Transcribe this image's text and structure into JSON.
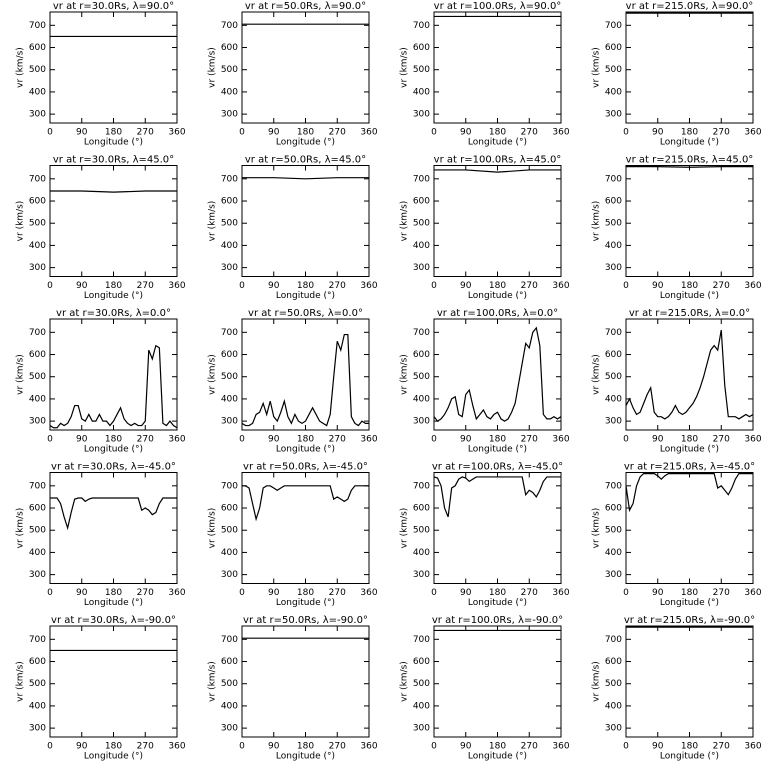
{
  "chart_data": [
    {
      "type": "line",
      "title": "vr at r=30.0Rs, λ=90.0°",
      "xlabel": "Longitude (°)",
      "ylabel": "vr (km/s)",
      "color": "#000000",
      "x": [
        0,
        90,
        180,
        270,
        360
      ],
      "values": [
        650,
        650,
        650,
        650,
        650
      ],
      "xlim": [
        0,
        360
      ],
      "ylim": [
        260,
        760
      ],
      "xticks": [
        0,
        90,
        180,
        270,
        360
      ],
      "yticks": [
        300,
        400,
        500,
        600,
        700
      ]
    },
    {
      "type": "line",
      "title": "vr at r=50.0Rs, λ=90.0°",
      "xlabel": "Longitude (°)",
      "ylabel": "vr (km/s)",
      "color": "#000000",
      "x": [
        0,
        90,
        180,
        270,
        360
      ],
      "values": [
        705,
        705,
        705,
        705,
        705
      ],
      "xlim": [
        0,
        360
      ],
      "ylim": [
        260,
        760
      ],
      "xticks": [
        0,
        90,
        180,
        270,
        360
      ],
      "yticks": [
        300,
        400,
        500,
        600,
        700
      ]
    },
    {
      "type": "line",
      "title": "vr at r=100.0Rs, λ=90.0°",
      "xlabel": "Longitude (°)",
      "ylabel": "vr (km/s)",
      "color": "#000000",
      "x": [
        0,
        90,
        180,
        270,
        360
      ],
      "values": [
        740,
        740,
        740,
        740,
        740
      ],
      "xlim": [
        0,
        360
      ],
      "ylim": [
        260,
        760
      ],
      "xticks": [
        0,
        90,
        180,
        270,
        360
      ],
      "yticks": [
        300,
        400,
        500,
        600,
        700
      ]
    },
    {
      "type": "line",
      "title": "vr at r=215.0Rs, λ=90.0°",
      "xlabel": "Longitude (°)",
      "ylabel": "vr (km/s)",
      "color": "#000000",
      "x": [
        0,
        90,
        180,
        270,
        360
      ],
      "values": [
        755,
        755,
        755,
        755,
        755
      ],
      "xlim": [
        0,
        360
      ],
      "ylim": [
        260,
        760
      ],
      "xticks": [
        0,
        90,
        180,
        270,
        360
      ],
      "yticks": [
        300,
        400,
        500,
        600,
        700
      ]
    },
    {
      "type": "line",
      "title": "vr at r=30.0Rs, λ=45.0°",
      "xlabel": "Longitude (°)",
      "ylabel": "vr (km/s)",
      "color": "#000000",
      "x": [
        0,
        90,
        180,
        270,
        360
      ],
      "values": [
        645,
        645,
        640,
        645,
        645
      ],
      "xlim": [
        0,
        360
      ],
      "ylim": [
        260,
        760
      ],
      "xticks": [
        0,
        90,
        180,
        270,
        360
      ],
      "yticks": [
        300,
        400,
        500,
        600,
        700
      ]
    },
    {
      "type": "line",
      "title": "vr at r=50.0Rs, λ=45.0°",
      "xlabel": "Longitude (°)",
      "ylabel": "vr (km/s)",
      "color": "#000000",
      "x": [
        0,
        90,
        180,
        270,
        360
      ],
      "values": [
        705,
        705,
        700,
        705,
        705
      ],
      "xlim": [
        0,
        360
      ],
      "ylim": [
        260,
        760
      ],
      "xticks": [
        0,
        90,
        180,
        270,
        360
      ],
      "yticks": [
        300,
        400,
        500,
        600,
        700
      ]
    },
    {
      "type": "line",
      "title": "vr at r=100.0Rs, λ=45.0°",
      "xlabel": "Longitude (°)",
      "ylabel": "vr (km/s)",
      "color": "#000000",
      "x": [
        0,
        90,
        180,
        270,
        360
      ],
      "values": [
        740,
        740,
        730,
        740,
        740
      ],
      "xlim": [
        0,
        360
      ],
      "ylim": [
        260,
        760
      ],
      "xticks": [
        0,
        90,
        180,
        270,
        360
      ],
      "yticks": [
        300,
        400,
        500,
        600,
        700
      ]
    },
    {
      "type": "line",
      "title": "vr at r=215.0Rs, λ=45.0°",
      "xlabel": "Longitude (°)",
      "ylabel": "vr (km/s)",
      "color": "#000000",
      "x": [
        0,
        90,
        180,
        270,
        360
      ],
      "values": [
        755,
        755,
        752,
        755,
        755
      ],
      "xlim": [
        0,
        360
      ],
      "ylim": [
        260,
        760
      ],
      "xticks": [
        0,
        90,
        180,
        270,
        360
      ],
      "yticks": [
        300,
        400,
        500,
        600,
        700
      ]
    },
    {
      "type": "line",
      "title": "vr at r=30.0Rs, λ=0.0°",
      "xlabel": "Longitude (°)",
      "ylabel": "vr (km/s)",
      "color": "#000000",
      "x": [
        0,
        10,
        20,
        30,
        40,
        50,
        60,
        70,
        80,
        90,
        100,
        110,
        120,
        130,
        140,
        150,
        160,
        170,
        180,
        190,
        200,
        210,
        220,
        230,
        240,
        250,
        260,
        270,
        280,
        290,
        300,
        310,
        320,
        330,
        340,
        350,
        360
      ],
      "values": [
        280,
        270,
        270,
        290,
        280,
        290,
        320,
        370,
        370,
        310,
        300,
        330,
        300,
        300,
        330,
        300,
        300,
        280,
        300,
        330,
        360,
        310,
        290,
        280,
        290,
        280,
        280,
        300,
        620,
        580,
        640,
        630,
        290,
        280,
        300,
        280,
        270
      ],
      "xlim": [
        0,
        360
      ],
      "ylim": [
        260,
        760
      ],
      "xticks": [
        0,
        90,
        180,
        270,
        360
      ],
      "yticks": [
        300,
        400,
        500,
        600,
        700
      ]
    },
    {
      "type": "line",
      "title": "vr at r=50.0Rs, λ=0.0°",
      "xlabel": "Longitude (°)",
      "ylabel": "vr (km/s)",
      "color": "#000000",
      "x": [
        0,
        10,
        20,
        30,
        40,
        50,
        60,
        70,
        80,
        90,
        100,
        110,
        120,
        130,
        140,
        150,
        160,
        170,
        180,
        190,
        200,
        210,
        220,
        230,
        240,
        250,
        260,
        270,
        280,
        290,
        300,
        310,
        320,
        330,
        340,
        350,
        360
      ],
      "values": [
        290,
        280,
        280,
        290,
        330,
        340,
        380,
        330,
        390,
        320,
        300,
        340,
        390,
        320,
        290,
        330,
        300,
        290,
        300,
        330,
        360,
        330,
        300,
        290,
        280,
        330,
        500,
        660,
        620,
        690,
        690,
        320,
        290,
        280,
        300,
        290,
        290
      ],
      "xlim": [
        0,
        360
      ],
      "ylim": [
        260,
        760
      ],
      "xticks": [
        0,
        90,
        180,
        270,
        360
      ],
      "yticks": [
        300,
        400,
        500,
        600,
        700
      ]
    },
    {
      "type": "line",
      "title": "vr at r=100.0Rs, λ=0.0°",
      "xlabel": "Longitude (°)",
      "ylabel": "vr (km/s)",
      "color": "#000000",
      "x": [
        0,
        10,
        20,
        30,
        40,
        50,
        60,
        70,
        80,
        90,
        100,
        110,
        120,
        130,
        140,
        150,
        160,
        170,
        180,
        190,
        200,
        210,
        220,
        230,
        240,
        250,
        260,
        270,
        280,
        290,
        300,
        310,
        320,
        330,
        340,
        350,
        360
      ],
      "values": [
        320,
        300,
        310,
        330,
        360,
        400,
        410,
        330,
        320,
        420,
        440,
        370,
        310,
        330,
        350,
        320,
        310,
        330,
        340,
        310,
        300,
        310,
        340,
        380,
        470,
        560,
        650,
        630,
        700,
        720,
        640,
        330,
        310,
        310,
        320,
        310,
        320
      ],
      "xlim": [
        0,
        360
      ],
      "ylim": [
        260,
        760
      ],
      "xticks": [
        0,
        90,
        180,
        270,
        360
      ],
      "yticks": [
        300,
        400,
        500,
        600,
        700
      ]
    },
    {
      "type": "line",
      "title": "vr at r=215.0Rs, λ=0.0°",
      "xlabel": "Longitude (°)",
      "ylabel": "vr (km/s)",
      "color": "#000000",
      "x": [
        0,
        10,
        20,
        30,
        40,
        50,
        60,
        70,
        80,
        90,
        100,
        110,
        120,
        130,
        140,
        150,
        160,
        170,
        180,
        190,
        200,
        210,
        220,
        230,
        240,
        250,
        260,
        270,
        280,
        290,
        300,
        310,
        320,
        330,
        340,
        350,
        360
      ],
      "values": [
        370,
        400,
        360,
        330,
        340,
        380,
        420,
        450,
        340,
        320,
        320,
        310,
        320,
        340,
        370,
        340,
        330,
        340,
        360,
        380,
        410,
        450,
        500,
        560,
        620,
        640,
        620,
        710,
        460,
        320,
        320,
        320,
        310,
        320,
        330,
        320,
        330
      ],
      "xlim": [
        0,
        360
      ],
      "ylim": [
        260,
        760
      ],
      "xticks": [
        0,
        90,
        180,
        270,
        360
      ],
      "yticks": [
        300,
        400,
        500,
        600,
        700
      ]
    },
    {
      "type": "line",
      "title": "vr at r=30.0Rs, λ=-45.0°",
      "xlabel": "Longitude (°)",
      "ylabel": "vr (km/s)",
      "color": "#000000",
      "x": [
        0,
        10,
        20,
        30,
        40,
        50,
        60,
        70,
        80,
        90,
        100,
        110,
        120,
        130,
        140,
        150,
        160,
        170,
        180,
        190,
        200,
        210,
        220,
        230,
        240,
        250,
        260,
        270,
        280,
        290,
        300,
        310,
        320,
        330,
        340,
        350,
        360
      ],
      "values": [
        645,
        645,
        645,
        620,
        560,
        510,
        580,
        640,
        645,
        645,
        630,
        640,
        645,
        645,
        645,
        645,
        645,
        645,
        645,
        645,
        645,
        645,
        645,
        645,
        645,
        645,
        590,
        600,
        590,
        570,
        580,
        620,
        645,
        645,
        645,
        645,
        645
      ],
      "xlim": [
        0,
        360
      ],
      "ylim": [
        260,
        760
      ],
      "xticks": [
        0,
        90,
        180,
        270,
        360
      ],
      "yticks": [
        300,
        400,
        500,
        600,
        700
      ]
    },
    {
      "type": "line",
      "title": "vr at r=50.0Rs, λ=-45.0°",
      "xlabel": "Longitude (°)",
      "ylabel": "vr (km/s)",
      "color": "#000000",
      "x": [
        0,
        10,
        20,
        30,
        40,
        50,
        60,
        70,
        80,
        90,
        100,
        110,
        120,
        130,
        140,
        150,
        160,
        170,
        180,
        190,
        200,
        210,
        220,
        230,
        240,
        250,
        260,
        270,
        280,
        290,
        300,
        310,
        320,
        330,
        340,
        350,
        360
      ],
      "values": [
        700,
        700,
        690,
        620,
        550,
        600,
        690,
        700,
        700,
        690,
        680,
        690,
        700,
        700,
        700,
        700,
        700,
        700,
        700,
        700,
        700,
        700,
        700,
        700,
        700,
        700,
        640,
        650,
        640,
        630,
        640,
        680,
        700,
        700,
        700,
        700,
        700
      ],
      "xlim": [
        0,
        360
      ],
      "ylim": [
        260,
        760
      ],
      "xticks": [
        0,
        90,
        180,
        270,
        360
      ],
      "yticks": [
        300,
        400,
        500,
        600,
        700
      ]
    },
    {
      "type": "line",
      "title": "vr at r=100.0Rs, λ=-45.0°",
      "xlabel": "Longitude (°)",
      "ylabel": "vr (km/s)",
      "color": "#000000",
      "x": [
        0,
        10,
        20,
        30,
        40,
        50,
        60,
        70,
        80,
        90,
        100,
        110,
        120,
        130,
        140,
        150,
        160,
        170,
        180,
        190,
        200,
        210,
        220,
        230,
        240,
        250,
        260,
        270,
        280,
        290,
        300,
        310,
        320,
        330,
        340,
        350,
        360
      ],
      "values": [
        740,
        735,
        700,
        600,
        560,
        690,
        700,
        730,
        740,
        735,
        720,
        730,
        740,
        740,
        740,
        740,
        740,
        740,
        740,
        740,
        740,
        740,
        740,
        740,
        740,
        740,
        660,
        680,
        670,
        650,
        680,
        720,
        740,
        740,
        740,
        740,
        740
      ],
      "xlim": [
        0,
        360
      ],
      "ylim": [
        260,
        760
      ],
      "xticks": [
        0,
        90,
        180,
        270,
        360
      ],
      "yticks": [
        300,
        400,
        500,
        600,
        700
      ]
    },
    {
      "type": "line",
      "title": "vr at r=215.0Rs, λ=-45.0°",
      "xlabel": "Longitude (°)",
      "ylabel": "vr (km/s)",
      "color": "#000000",
      "x": [
        0,
        10,
        20,
        30,
        40,
        50,
        60,
        70,
        80,
        90,
        100,
        110,
        120,
        130,
        140,
        150,
        160,
        170,
        180,
        190,
        200,
        210,
        220,
        230,
        240,
        250,
        260,
        270,
        280,
        290,
        300,
        310,
        320,
        330,
        340,
        350,
        360
      ],
      "values": [
        700,
        590,
        620,
        700,
        740,
        755,
        755,
        755,
        755,
        745,
        730,
        745,
        755,
        755,
        755,
        755,
        755,
        755,
        755,
        755,
        755,
        755,
        755,
        755,
        755,
        755,
        690,
        700,
        680,
        660,
        690,
        730,
        755,
        755,
        755,
        755,
        755
      ],
      "xlim": [
        0,
        360
      ],
      "ylim": [
        260,
        760
      ],
      "xticks": [
        0,
        90,
        180,
        270,
        360
      ],
      "yticks": [
        300,
        400,
        500,
        600,
        700
      ]
    },
    {
      "type": "line",
      "title": "vr at r=30.0Rs, λ=-90.0°",
      "xlabel": "Longitude (°)",
      "ylabel": "vr (km/s)",
      "color": "#000000",
      "x": [
        0,
        90,
        180,
        270,
        360
      ],
      "values": [
        650,
        650,
        650,
        650,
        650
      ],
      "xlim": [
        0,
        360
      ],
      "ylim": [
        260,
        760
      ],
      "xticks": [
        0,
        90,
        180,
        270,
        360
      ],
      "yticks": [
        300,
        400,
        500,
        600,
        700
      ]
    },
    {
      "type": "line",
      "title": "vr at r=50.0Rs, λ=-90.0°",
      "xlabel": "Longitude (°)",
      "ylabel": "vr (km/s)",
      "color": "#000000",
      "x": [
        0,
        90,
        180,
        270,
        360
      ],
      "values": [
        705,
        705,
        705,
        705,
        705
      ],
      "xlim": [
        0,
        360
      ],
      "ylim": [
        260,
        760
      ],
      "xticks": [
        0,
        90,
        180,
        270,
        360
      ],
      "yticks": [
        300,
        400,
        500,
        600,
        700
      ]
    },
    {
      "type": "line",
      "title": "vr at r=100.0Rs, λ=-90.0°",
      "xlabel": "Longitude (°)",
      "ylabel": "vr (km/s)",
      "color": "#000000",
      "x": [
        0,
        90,
        180,
        270,
        360
      ],
      "values": [
        740,
        740,
        740,
        740,
        740
      ],
      "xlim": [
        0,
        360
      ],
      "ylim": [
        260,
        760
      ],
      "xticks": [
        0,
        90,
        180,
        270,
        360
      ],
      "yticks": [
        300,
        400,
        500,
        600,
        700
      ]
    },
    {
      "type": "line",
      "title": "vr at r=215.0Rs, λ=-90.0°",
      "xlabel": "Longitude (°)",
      "ylabel": "vr (km/s)",
      "color": "#000000",
      "x": [
        0,
        90,
        180,
        270,
        360
      ],
      "values": [
        755,
        755,
        755,
        755,
        755
      ],
      "xlim": [
        0,
        360
      ],
      "ylim": [
        260,
        760
      ],
      "xticks": [
        0,
        90,
        180,
        270,
        360
      ],
      "yticks": [
        300,
        400,
        500,
        600,
        700
      ]
    }
  ]
}
